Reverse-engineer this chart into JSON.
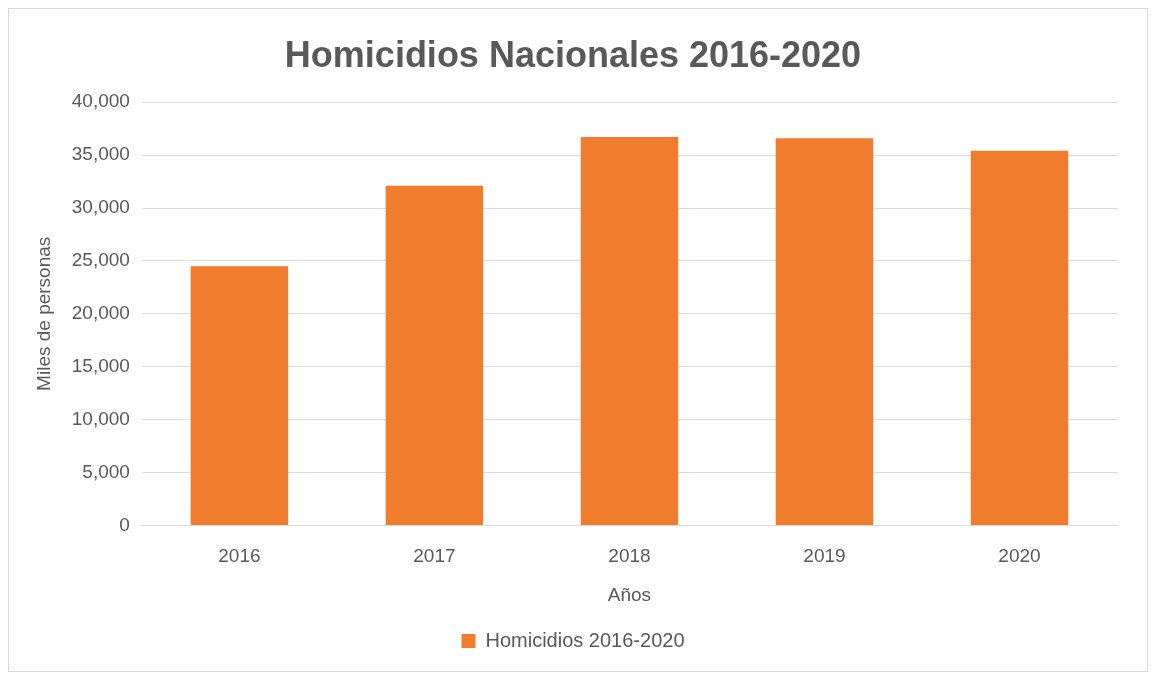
{
  "chart_data": {
    "type": "bar",
    "title": "Homicidios Nacionales 2016-2020",
    "xlabel": "Años",
    "ylabel": "Miles de personas",
    "categories": [
      "2016",
      "2017",
      "2018",
      "2019",
      "2020"
    ],
    "series": [
      {
        "name": "Homicidios 2016-2020",
        "color": "#f07d2e",
        "values": [
          24500,
          32100,
          36700,
          36600,
          35400
        ]
      }
    ],
    "ylim": [
      0,
      40000
    ],
    "yticks": [
      {
        "value": 0,
        "label": "0"
      },
      {
        "value": 5000,
        "label": "5,000"
      },
      {
        "value": 10000,
        "label": "10,000"
      },
      {
        "value": 15000,
        "label": "15,000"
      },
      {
        "value": 20000,
        "label": "20,000"
      },
      {
        "value": 25000,
        "label": "25,000"
      },
      {
        "value": 30000,
        "label": "30,000"
      },
      {
        "value": 35000,
        "label": "35,000"
      },
      {
        "value": 40000,
        "label": "40,000"
      }
    ],
    "grid": "y",
    "legend": "bottom"
  }
}
